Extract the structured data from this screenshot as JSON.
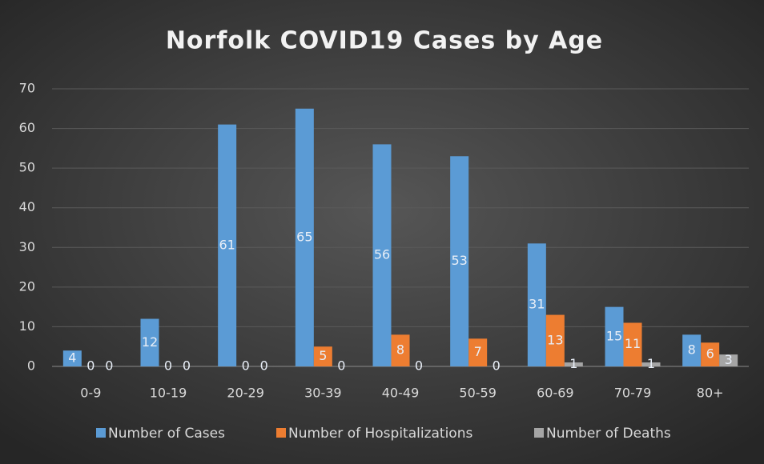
{
  "chart_data": {
    "type": "bar",
    "title": "Norfolk COVID19 Cases by Age",
    "categories": [
      "0-9",
      "10-19",
      "20-29",
      "30-39",
      "40-49",
      "50-59",
      "60-69",
      "70-79",
      "80+"
    ],
    "series": [
      {
        "name": "Number of Cases",
        "color": "#5b9bd5",
        "values": [
          4,
          12,
          61,
          65,
          56,
          53,
          31,
          15,
          8
        ]
      },
      {
        "name": "Number of Hospitalizations",
        "color": "#ed7d31",
        "values": [
          0,
          0,
          0,
          5,
          8,
          7,
          13,
          11,
          6
        ]
      },
      {
        "name": "Number of Deaths",
        "color": "#a5a5a5",
        "values": [
          0,
          0,
          0,
          0,
          0,
          0,
          1,
          1,
          3
        ]
      }
    ],
    "ylim": [
      0,
      70
    ],
    "yticks": [
      0,
      10,
      20,
      30,
      40,
      50,
      60,
      70
    ],
    "grid": true,
    "legend": "bottom"
  }
}
